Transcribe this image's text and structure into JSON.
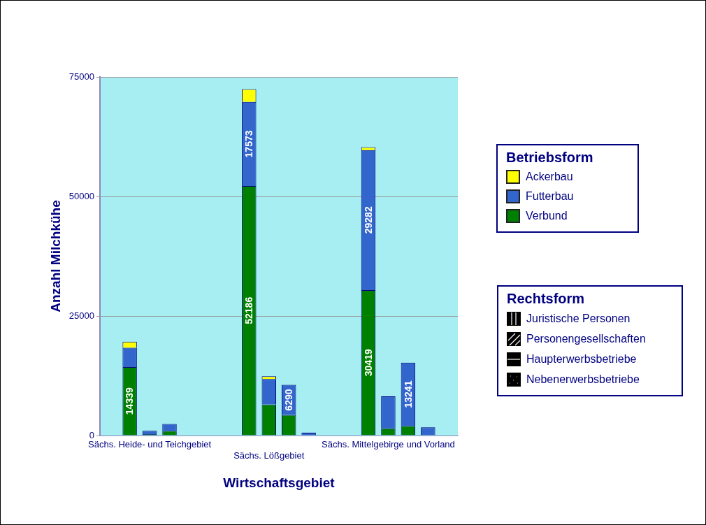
{
  "chart_data": {
    "type": "bar",
    "stacked": true,
    "categories": [
      null,
      null,
      "Sächs. Heide- und Teichgebiet",
      null,
      null,
      null,
      null,
      null,
      "Sächs. Lößgebiet",
      null,
      null,
      null,
      null,
      null,
      "Sächs. Mittelgebirge und Vorland",
      null,
      null,
      null
    ],
    "xlabel": "Wirtschaftsgebiet",
    "ylabel": "Anzahl Milchkühe",
    "legend_title": "Betriebsform",
    "legend": "right",
    "grid": "y",
    "ylim": [
      0,
      75000
    ],
    "yticks": [
      0,
      25000,
      50000,
      75000
    ],
    "annotations": [
      "Rechtsform",
      "Juristische Personen",
      "Personengesellschaften",
      "Haupterwerbsbetriebe",
      "Nebenerwerbsbetriebe"
    ],
    "series": [
      {
        "name": "Verbund",
        "color": "#008000",
        "values": [
          null,
          14339,
          300,
          1000,
          null,
          null,
          null,
          52186,
          6500,
          4300,
          null,
          null,
          null,
          30419,
          1500,
          2000,
          null,
          null
        ],
        "value_labels": [
          null,
          "14339",
          null,
          null,
          null,
          null,
          null,
          "52186",
          null,
          null,
          null,
          null,
          null,
          "30419",
          null,
          null,
          null,
          null
        ]
      },
      {
        "name": "Futterbau",
        "color": "#3366cc",
        "values": [
          null,
          4000,
          700,
          1400,
          null,
          null,
          null,
          17573,
          5300,
          6290,
          600,
          null,
          null,
          29282,
          6700,
          13241,
          1700,
          null
        ],
        "value_labels": [
          null,
          null,
          null,
          null,
          null,
          null,
          null,
          "17573",
          null,
          "6290",
          null,
          null,
          null,
          "29282",
          null,
          "13241",
          null,
          null
        ]
      },
      {
        "name": "Ackerbau",
        "color": "#ffff00",
        "values": [
          null,
          1300,
          null,
          null,
          null,
          null,
          null,
          2700,
          600,
          null,
          null,
          null,
          null,
          600,
          null,
          null,
          null,
          null
        ]
      }
    ]
  }
}
